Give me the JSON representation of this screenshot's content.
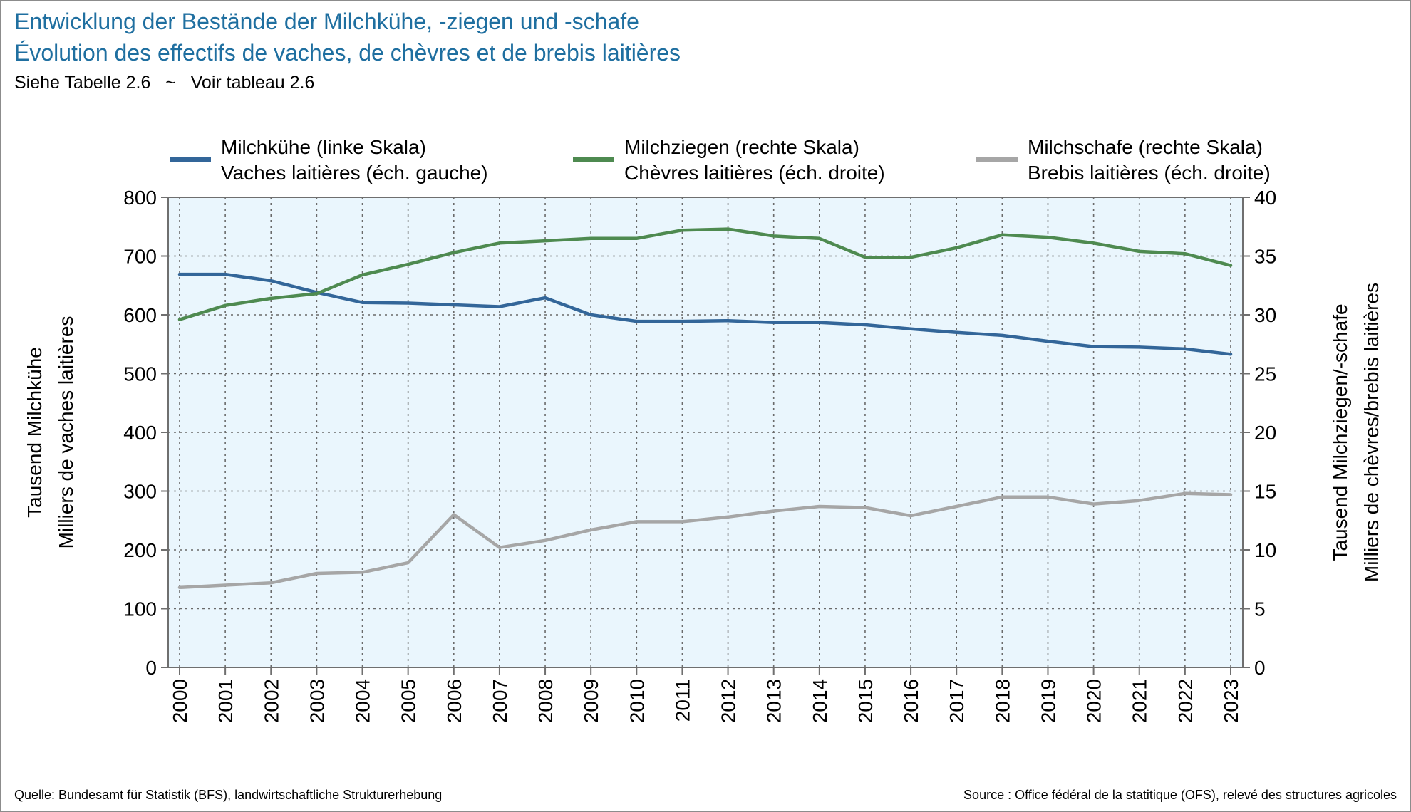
{
  "header": {
    "title_de": "Entwicklung der Bestände der Milchkühe, -ziegen und -schafe",
    "title_fr": "Évolution des effectifs de vaches, de chèvres et de brebis laitières",
    "subtitle": "Siehe Tabelle 2.6   ~   Voir tableau 2.6"
  },
  "footer": {
    "source_de": "Quelle: Bundesamt für Statistik (BFS), landwirtschaftliche Strukturerhebung",
    "source_fr": "Source : Office fédéral de la statitique (OFS), relevé des structures agricoles"
  },
  "chart_data": {
    "type": "line",
    "x": [
      "2000",
      "2001",
      "2002",
      "2003",
      "2004",
      "2005",
      "2006",
      "2007",
      "2008",
      "2009",
      "2010",
      "2011",
      "2012",
      "2013",
      "2014",
      "2015",
      "2016",
      "2017",
      "2018",
      "2019",
      "2020",
      "2021",
      "2022",
      "2023"
    ],
    "y_left": {
      "label_line1": "Tausend Milchkühe",
      "label_line2": "Milliers de vaches laitières",
      "range": [
        0,
        800
      ],
      "ticks": [
        0,
        100,
        200,
        300,
        400,
        500,
        600,
        700,
        800
      ]
    },
    "y_right": {
      "label_line1": "Tausend Milchziegen/-schafe",
      "label_line2": "Milliers de chèvres/brebis laitières",
      "range": [
        0,
        40
      ],
      "ticks": [
        0,
        5,
        10,
        15,
        20,
        25,
        30,
        35,
        40
      ]
    },
    "grid": true,
    "legend_position": "top",
    "background_color": "#eaf6fd",
    "series": [
      {
        "name_line1": "Milchkühe (linke Skala)",
        "name_line2": "Vaches laitières (éch. gauche)",
        "axis": "left",
        "color": "#336699",
        "values": [
          669,
          669,
          658,
          638,
          621,
          620,
          617,
          614,
          629,
          600,
          589,
          589,
          590,
          587,
          587,
          583,
          576,
          570,
          565,
          555,
          546,
          545,
          542,
          533
        ]
      },
      {
        "name_line1": "Milchziegen (rechte Skala)",
        "name_line2": "Chèvres laitières (éch. droite)",
        "axis": "right",
        "color": "#4e8a50",
        "values": [
          29.6,
          30.8,
          31.4,
          31.8,
          33.4,
          34.3,
          35.3,
          36.1,
          36.3,
          36.5,
          36.5,
          37.2,
          37.3,
          36.7,
          36.5,
          34.9,
          34.9,
          35.7,
          36.8,
          36.6,
          36.1,
          35.4,
          35.2,
          34.2
        ]
      },
      {
        "name_line1": "Milchschafe (rechte Skala)",
        "name_line2": "Brebis laitières (éch. droite)",
        "axis": "right",
        "color": "#a6a6a6",
        "values": [
          6.8,
          7.0,
          7.2,
          8.0,
          8.1,
          8.9,
          13.0,
          10.2,
          10.8,
          11.7,
          12.4,
          12.4,
          12.8,
          13.3,
          13.7,
          13.6,
          12.9,
          13.7,
          14.5,
          14.5,
          13.9,
          14.2,
          14.8,
          14.7
        ]
      }
    ]
  }
}
